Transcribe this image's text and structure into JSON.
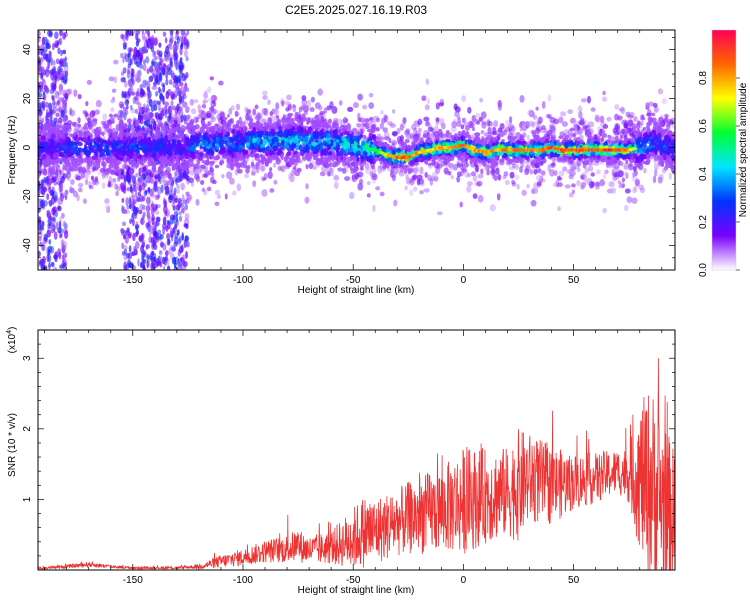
{
  "page_title": "C2E5.2025.027.16.19.R03",
  "chart_data": [
    {
      "type": "heatmap",
      "xlabel": "Height of straight line (km)",
      "ylabel": "Frequency (Hz)",
      "xlim": [
        -193,
        96
      ],
      "ylim": [
        -50,
        48
      ],
      "xticks": [
        -150,
        -100,
        -50,
        0,
        50
      ],
      "yticks": [
        -40,
        -20,
        0,
        20,
        40
      ],
      "grid": false,
      "colorbar": {
        "label": "Normalized spectral amplitude",
        "range": [
          0.0,
          1.0
        ],
        "ticks": [
          "0.0",
          "0.2",
          "0.4",
          "0.6",
          "0.8"
        ],
        "colors": [
          "#ffffff",
          "#7a00ff",
          "#0033ff",
          "#00e5ff",
          "#00ff33",
          "#ffff00",
          "#ff6600",
          "#ff0055"
        ]
      },
      "ridge": {
        "x": [
          -190,
          -170,
          -150,
          -130,
          -120,
          -100,
          -80,
          -60,
          -45,
          -40,
          -35,
          -30,
          -25,
          -20,
          -15,
          -10,
          -5,
          0,
          5,
          10,
          15,
          20,
          25,
          30,
          35,
          40,
          45,
          50,
          55,
          60,
          65,
          70,
          75,
          80,
          85,
          90,
          95
        ],
        "y": [
          0,
          0,
          0,
          0,
          1,
          2,
          3,
          2,
          0,
          -1,
          -3,
          -4,
          -4,
          -2,
          -1,
          0,
          0,
          1,
          -1,
          -2,
          -1,
          -1,
          -1,
          -1,
          -1,
          0,
          -1,
          -1,
          -1,
          -1,
          -1,
          -1,
          -1,
          0,
          2,
          1,
          0
        ],
        "peak_amplitude": [
          0.3,
          0.35,
          0.35,
          0.3,
          0.4,
          0.45,
          0.55,
          0.5,
          0.55,
          0.6,
          0.8,
          0.95,
          0.95,
          0.85,
          0.85,
          0.85,
          0.9,
          0.9,
          0.85,
          0.9,
          0.85,
          0.9,
          0.9,
          0.9,
          0.9,
          0.95,
          0.95,
          0.95,
          0.95,
          0.95,
          1.0,
          0.95,
          0.9,
          0.55,
          0.4,
          0.35,
          0.35
        ]
      },
      "broadband_segments": [
        {
          "x_from": -193,
          "x_to": -180
        },
        {
          "x_from": -155,
          "x_to": -125
        }
      ]
    },
    {
      "type": "line",
      "xlabel": "Height of straight line (km)",
      "ylabel": "SNR (10 * v/v)",
      "y_multiplier": "(x10",
      "y_multiplier_exp": "4",
      "y_multiplier_close": ")",
      "xlim": [
        -193,
        96
      ],
      "ylim": [
        0,
        3.4
      ],
      "xticks": [
        -150,
        -100,
        -50,
        0,
        50
      ],
      "yticks": [
        1,
        2,
        3
      ],
      "color": "#ee3333",
      "grid": false,
      "series": [
        {
          "x": [
            -193,
            -180,
            -170,
            -160,
            -150,
            -140,
            -130,
            -120,
            -110,
            -100,
            -90,
            -80,
            -75,
            -70,
            -60,
            -50,
            -45,
            -40,
            -30,
            -20,
            -10,
            0,
            10,
            20,
            25,
            30,
            40,
            50,
            60,
            70,
            75,
            80,
            85,
            90,
            95
          ],
          "y": [
            0.02,
            0.05,
            0.08,
            0.05,
            0.03,
            0.03,
            0.03,
            0.05,
            0.12,
            0.18,
            0.26,
            0.3,
            0.35,
            0.28,
            0.32,
            0.45,
            0.55,
            0.55,
            0.68,
            0.78,
            0.85,
            0.98,
            1.05,
            1.1,
            1.2,
            1.3,
            1.2,
            1.25,
            1.3,
            1.4,
            1.35,
            1.3,
            1.2,
            1.0,
            0.8
          ],
          "spread": [
            0.02,
            0.03,
            0.05,
            0.03,
            0.02,
            0.02,
            0.02,
            0.04,
            0.12,
            0.15,
            0.2,
            0.25,
            0.3,
            0.25,
            0.3,
            0.55,
            0.65,
            0.6,
            0.6,
            0.7,
            0.75,
            0.95,
            0.85,
            0.8,
            1.0,
            0.8,
            0.7,
            0.5,
            0.45,
            0.4,
            0.5,
            1.3,
            1.8,
            1.5,
            1.2
          ]
        }
      ]
    }
  ]
}
